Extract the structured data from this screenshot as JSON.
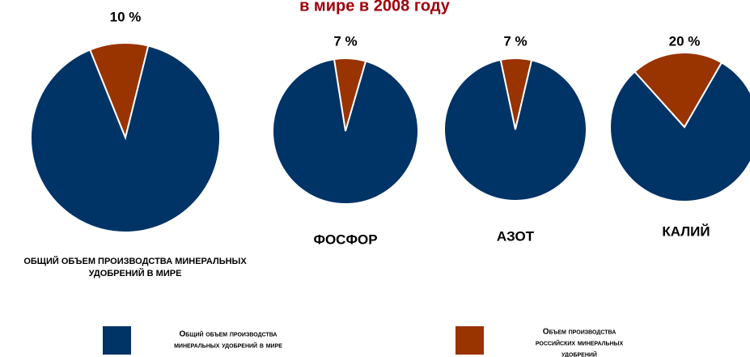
{
  "title": "в мире в 2008 году",
  "chart_data": [
    {
      "type": "pie",
      "title": [
        "ОБЩИЙ ОБЪЕМ ПРОИЗВОДСТВА МИНЕРАЛЬНЫХ",
        "УДОБРЕНИЙ В МИРЕ"
      ],
      "values": [
        90,
        10
      ],
      "value_labels": [
        null,
        "10 %"
      ],
      "colors": [
        "#003366",
        "#993300"
      ]
    },
    {
      "type": "pie",
      "title": [
        "ФОСФОР"
      ],
      "values": [
        93,
        7
      ],
      "value_labels": [
        null,
        "7 %"
      ],
      "colors": [
        "#003366",
        "#993300"
      ]
    },
    {
      "type": "pie",
      "title": [
        "АЗОТ"
      ],
      "values": [
        93,
        7
      ],
      "value_labels": [
        null,
        "7 %"
      ],
      "colors": [
        "#003366",
        "#993300"
      ]
    },
    {
      "type": "pie",
      "title": [
        "КАЛИЙ"
      ],
      "values": [
        80,
        20
      ],
      "value_labels": [
        null,
        "20 %"
      ],
      "colors": [
        "#003366",
        "#993300"
      ]
    }
  ],
  "legend": [
    {
      "label": [
        "Общий объем производства",
        "минеральных удобрений в мире"
      ],
      "color": "#003366"
    },
    {
      "label": [
        "Объем производства",
        "российских минеральных",
        "удобрений"
      ],
      "color": "#993300"
    }
  ]
}
